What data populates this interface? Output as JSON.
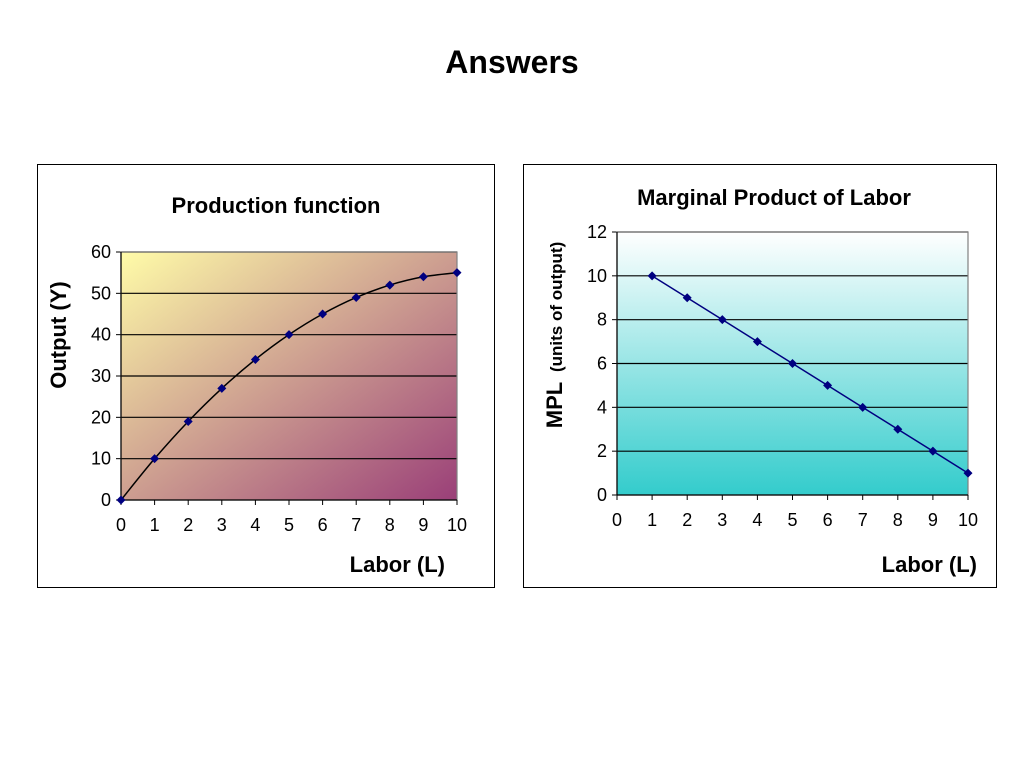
{
  "page": {
    "title": "Answers"
  },
  "chart_data": [
    {
      "type": "line",
      "title": "Production function",
      "xlabel": "Labor (L)",
      "ylabel": "Output (Y)",
      "x": [
        0,
        1,
        2,
        3,
        4,
        5,
        6,
        7,
        8,
        9,
        10
      ],
      "series": [
        {
          "values": [
            0,
            10,
            19,
            27,
            34,
            40,
            45,
            49,
            52,
            54,
            55
          ]
        }
      ],
      "xlim": [
        0,
        10
      ],
      "ylim": [
        0,
        60
      ],
      "xticks": [
        "0",
        "1",
        "2",
        "3",
        "4",
        "5",
        "6",
        "7",
        "8",
        "9",
        "10"
      ],
      "yticks": [
        "0",
        "10",
        "20",
        "30",
        "40",
        "50",
        "60"
      ],
      "grid": true,
      "colors": {
        "line": "#000000",
        "marker": "#000080",
        "bg_start": "#fffca8",
        "bg_end": "#9a3f78"
      }
    },
    {
      "type": "line",
      "title": "Marginal Product of Labor",
      "xlabel": "Labor (L)",
      "ylabel": "MPL",
      "ylabel_unit": "(units of output)",
      "x": [
        1,
        2,
        3,
        4,
        5,
        6,
        7,
        8,
        9,
        10
      ],
      "series": [
        {
          "values": [
            10,
            9,
            8,
            7,
            6,
            5,
            4,
            3,
            2,
            1
          ]
        }
      ],
      "xlim": [
        0,
        10
      ],
      "ylim": [
        0,
        12
      ],
      "xticks": [
        "0",
        "1",
        "2",
        "3",
        "4",
        "5",
        "6",
        "7",
        "8",
        "9",
        "10"
      ],
      "yticks": [
        "0",
        "2",
        "4",
        "6",
        "8",
        "10",
        "12"
      ],
      "grid": true,
      "colors": {
        "line": "#000080",
        "marker": "#000080",
        "bg_top": "#ffffff",
        "bg_bottom": "#33cccc"
      }
    }
  ]
}
